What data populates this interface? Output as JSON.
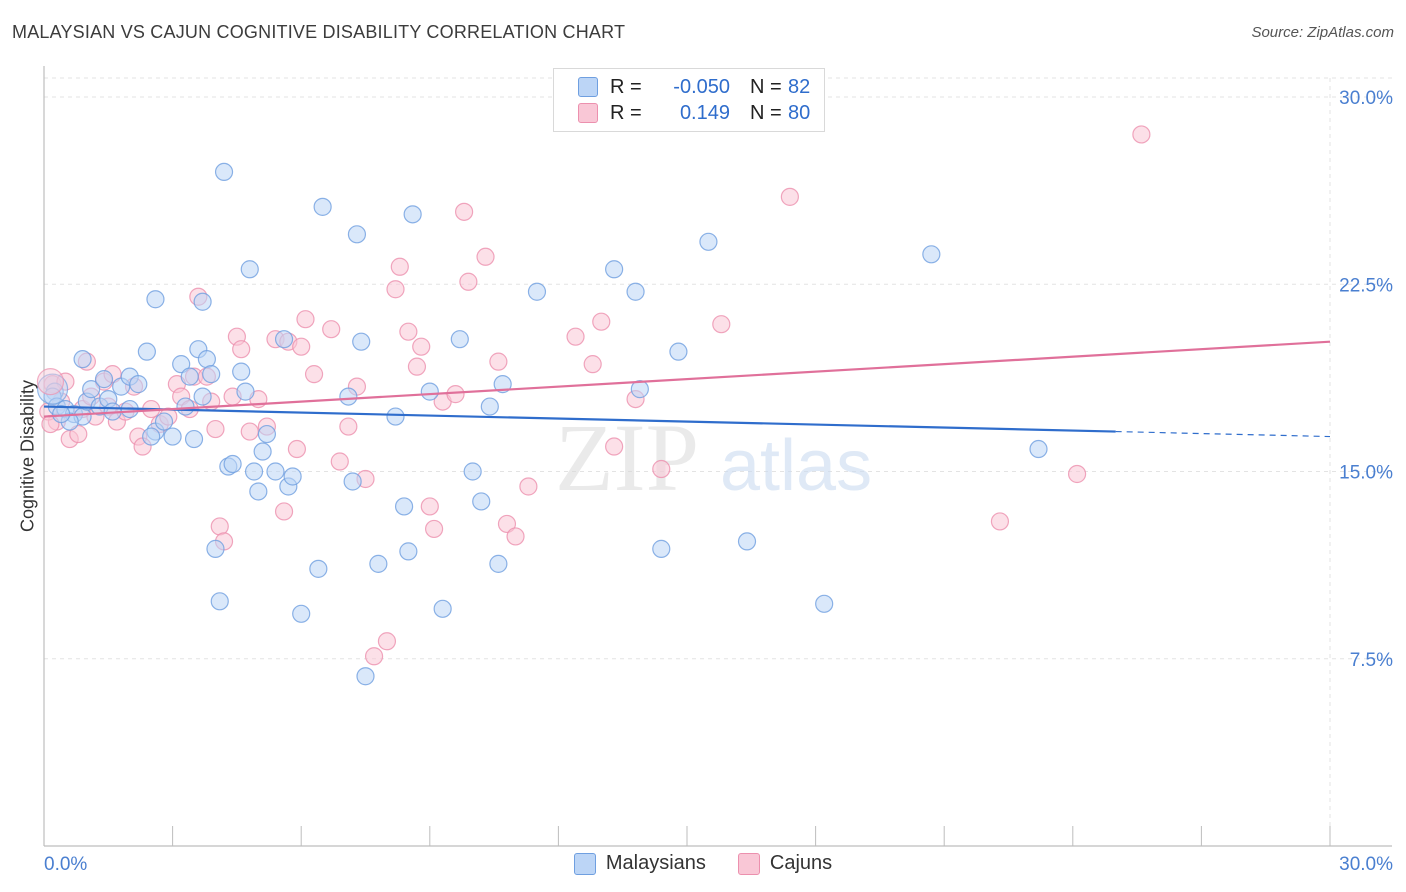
{
  "header": {
    "title": "MALAYSIAN VS CAJUN COGNITIVE DISABILITY CORRELATION CHART",
    "source": "Source: ZipAtlas.com"
  },
  "legend": {
    "rows": [
      {
        "r_label": "R =",
        "r_value": "-0.050",
        "n_label": "N =",
        "n_value": "82"
      },
      {
        "r_label": "R =",
        "r_value": "0.149",
        "n_label": "N =",
        "n_value": "80"
      }
    ]
  },
  "bottom_legend": [
    "Malaysians",
    "Cajuns"
  ],
  "colors": {
    "blue_fill": "#bcd5f6",
    "blue_stroke": "#6f9fe0",
    "blue_line": "#2f6dcc",
    "pink_fill": "#f9c7d6",
    "pink_stroke": "#ec90ae",
    "pink_line": "#e0709a",
    "tick_label": "#4a7fd0",
    "grid": "#e3e3e3"
  },
  "chart_data": {
    "type": "scatter",
    "title": "MALAYSIAN VS CAJUN COGNITIVE DISABILITY CORRELATION CHART",
    "xlabel": "",
    "ylabel": "Cognitive Disability",
    "xlim": [
      0,
      30
    ],
    "ylim": [
      0,
      30
    ],
    "x_tick_labels": [
      "0.0%",
      "30.0%"
    ],
    "y_ticks": [
      7.5,
      15.0,
      22.5,
      30.0
    ],
    "y_tick_labels": [
      "7.5%",
      "15.0%",
      "22.5%",
      "30.0%"
    ],
    "grid": true,
    "watermark": {
      "zip": "ZIP",
      "atlas": "atlas"
    },
    "series": [
      {
        "name": "Malaysians",
        "r": -0.05,
        "n": 82,
        "trend": {
          "x": [
            0.0,
            25.0,
            30.0
          ],
          "y": [
            17.6,
            16.6,
            16.4
          ]
        },
        "points": [
          [
            0.25,
            18.2
          ],
          [
            0.2,
            18.0
          ],
          [
            0.3,
            17.6
          ],
          [
            0.5,
            17.5
          ],
          [
            0.7,
            17.3
          ],
          [
            0.9,
            17.2
          ],
          [
            0.6,
            17.0
          ],
          [
            1.0,
            17.8
          ],
          [
            1.1,
            18.3
          ],
          [
            1.3,
            17.6
          ],
          [
            1.5,
            17.9
          ],
          [
            1.8,
            18.4
          ],
          [
            2.0,
            18.8
          ],
          [
            1.6,
            17.4
          ],
          [
            2.2,
            18.5
          ],
          [
            0.9,
            19.5
          ],
          [
            2.4,
            19.8
          ],
          [
            2.6,
            16.6
          ],
          [
            2.5,
            16.4
          ],
          [
            2.8,
            17.0
          ],
          [
            3.0,
            16.4
          ],
          [
            3.2,
            19.3
          ],
          [
            3.3,
            17.6
          ],
          [
            3.4,
            18.8
          ],
          [
            3.5,
            16.3
          ],
          [
            3.6,
            19.9
          ],
          [
            3.7,
            18.0
          ],
          [
            3.8,
            19.5
          ],
          [
            3.9,
            18.9
          ],
          [
            2.6,
            21.9
          ],
          [
            3.7,
            21.8
          ],
          [
            4.2,
            27.0
          ],
          [
            4.3,
            15.2
          ],
          [
            4.4,
            15.3
          ],
          [
            4.6,
            19.0
          ],
          [
            4.7,
            18.2
          ],
          [
            4.8,
            23.1
          ],
          [
            4.9,
            15.0
          ],
          [
            5.0,
            14.2
          ],
          [
            5.1,
            15.8
          ],
          [
            5.2,
            16.5
          ],
          [
            5.4,
            15.0
          ],
          [
            5.6,
            20.3
          ],
          [
            5.7,
            14.4
          ],
          [
            5.8,
            14.8
          ],
          [
            6.5,
            25.6
          ],
          [
            6.4,
            11.1
          ],
          [
            6.0,
            9.3
          ],
          [
            7.3,
            24.5
          ],
          [
            7.1,
            18.0
          ],
          [
            7.2,
            14.6
          ],
          [
            7.4,
            20.2
          ],
          [
            7.5,
            6.8
          ],
          [
            7.8,
            11.3
          ],
          [
            8.2,
            17.2
          ],
          [
            8.4,
            13.6
          ],
          [
            8.5,
            11.8
          ],
          [
            8.6,
            25.3
          ],
          [
            9.0,
            18.2
          ],
          [
            9.3,
            9.5
          ],
          [
            9.7,
            20.3
          ],
          [
            10.0,
            15.0
          ],
          [
            10.2,
            13.8
          ],
          [
            10.4,
            17.6
          ],
          [
            10.7,
            18.5
          ],
          [
            10.6,
            11.3
          ],
          [
            11.5,
            22.2
          ],
          [
            13.3,
            23.1
          ],
          [
            13.8,
            22.2
          ],
          [
            13.9,
            18.3
          ],
          [
            14.4,
            11.9
          ],
          [
            14.8,
            19.8
          ],
          [
            15.5,
            24.2
          ],
          [
            16.4,
            12.2
          ],
          [
            18.2,
            9.7
          ],
          [
            20.7,
            23.7
          ],
          [
            23.2,
            15.9
          ],
          [
            4.1,
            9.8
          ],
          [
            4.0,
            11.9
          ],
          [
            2.0,
            17.5
          ],
          [
            1.4,
            18.7
          ],
          [
            0.4,
            17.3
          ]
        ]
      },
      {
        "name": "Cajuns",
        "r": 0.149,
        "n": 80,
        "trend": {
          "x": [
            0.0,
            30.0
          ],
          "y": [
            17.2,
            20.2
          ]
        },
        "points": [
          [
            0.2,
            18.5
          ],
          [
            0.3,
            17.0
          ],
          [
            0.4,
            17.8
          ],
          [
            0.5,
            18.6
          ],
          [
            0.6,
            16.3
          ],
          [
            0.8,
            16.5
          ],
          [
            0.9,
            17.5
          ],
          [
            1.0,
            19.4
          ],
          [
            1.1,
            18.0
          ],
          [
            1.2,
            17.2
          ],
          [
            1.4,
            18.6
          ],
          [
            1.5,
            17.6
          ],
          [
            1.6,
            18.9
          ],
          [
            1.7,
            17.0
          ],
          [
            1.9,
            17.4
          ],
          [
            2.1,
            18.4
          ],
          [
            2.2,
            16.4
          ],
          [
            2.3,
            16.0
          ],
          [
            2.5,
            17.5
          ],
          [
            2.7,
            16.9
          ],
          [
            2.9,
            17.2
          ],
          [
            3.1,
            18.5
          ],
          [
            3.2,
            18.0
          ],
          [
            3.4,
            17.5
          ],
          [
            3.5,
            18.8
          ],
          [
            3.6,
            22.0
          ],
          [
            3.8,
            18.8
          ],
          [
            3.9,
            17.8
          ],
          [
            4.0,
            16.7
          ],
          [
            4.1,
            12.8
          ],
          [
            4.2,
            12.2
          ],
          [
            4.4,
            18.0
          ],
          [
            4.5,
            20.4
          ],
          [
            4.6,
            19.9
          ],
          [
            4.8,
            16.6
          ],
          [
            5.0,
            17.9
          ],
          [
            5.2,
            16.8
          ],
          [
            5.4,
            20.3
          ],
          [
            5.6,
            13.4
          ],
          [
            5.7,
            20.2
          ],
          [
            5.9,
            15.9
          ],
          [
            6.0,
            20.0
          ],
          [
            6.1,
            21.1
          ],
          [
            6.3,
            18.9
          ],
          [
            6.7,
            20.7
          ],
          [
            6.9,
            15.4
          ],
          [
            7.1,
            16.8
          ],
          [
            7.3,
            18.4
          ],
          [
            7.5,
            14.7
          ],
          [
            7.7,
            7.6
          ],
          [
            8.0,
            8.2
          ],
          [
            8.2,
            22.3
          ],
          [
            8.3,
            23.2
          ],
          [
            8.5,
            20.6
          ],
          [
            8.7,
            19.2
          ],
          [
            8.8,
            20.0
          ],
          [
            9.0,
            13.6
          ],
          [
            9.1,
            12.7
          ],
          [
            9.3,
            17.8
          ],
          [
            9.6,
            18.1
          ],
          [
            9.8,
            25.4
          ],
          [
            9.9,
            22.6
          ],
          [
            10.3,
            23.6
          ],
          [
            10.6,
            19.4
          ],
          [
            10.8,
            12.9
          ],
          [
            11.0,
            12.4
          ],
          [
            11.3,
            14.4
          ],
          [
            12.4,
            20.4
          ],
          [
            12.8,
            19.3
          ],
          [
            13.0,
            21.0
          ],
          [
            13.3,
            16.0
          ],
          [
            13.8,
            17.9
          ],
          [
            14.4,
            15.1
          ],
          [
            15.8,
            20.9
          ],
          [
            17.4,
            26.0
          ],
          [
            22.3,
            13.0
          ],
          [
            24.1,
            14.9
          ],
          [
            25.6,
            28.5
          ],
          [
            0.1,
            17.4
          ],
          [
            0.15,
            16.9
          ]
        ]
      }
    ]
  }
}
